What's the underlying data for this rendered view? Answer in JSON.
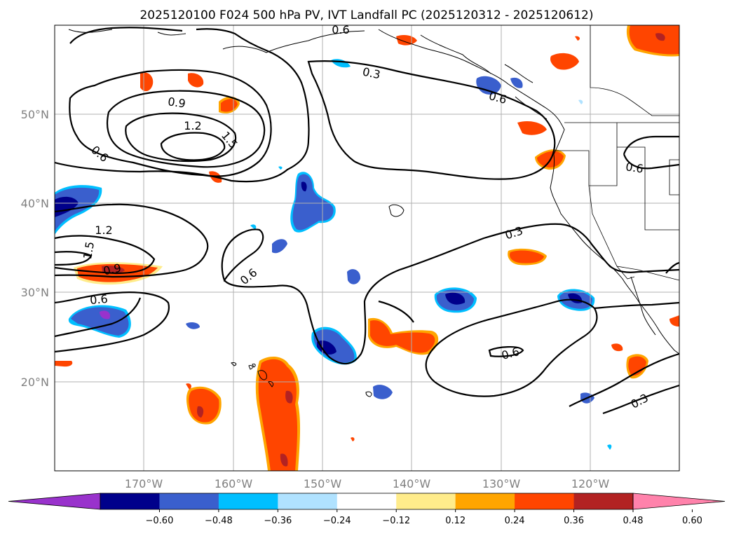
{
  "title": "2025120100 F024 500 hPa PV, IVT Landfall PC (2025120312 - 2025120612)",
  "lat_labels": [
    "50°N",
    "40°N",
    "30°N",
    "20°N"
  ],
  "lon_labels": [
    "170°W",
    "160°W",
    "150°W",
    "140°W",
    "130°W",
    "120°W"
  ],
  "colorbar": {
    "ticks": [
      "−0.60",
      "−0.48",
      "−0.36",
      "−0.24",
      "−0.12",
      "0.12",
      "0.24",
      "0.36",
      "0.48",
      "0.60"
    ],
    "colors": [
      "#9932cc",
      "#00008b",
      "#3a5fcd",
      "#00bfff",
      "#b0e2ff",
      "#ffffff",
      "#ffec8b",
      "#ffa500",
      "#ff4500",
      "#b22222",
      "#ff82ab"
    ]
  },
  "contour_labels": [
    "0.6",
    "0.3",
    "0.6",
    "0.9",
    "1.2",
    "1.5",
    "0.6",
    "0.6",
    "1.2",
    "1.5",
    "0.9",
    "0.6",
    "0.6",
    "0.3",
    "0.6",
    "0.3"
  ]
}
